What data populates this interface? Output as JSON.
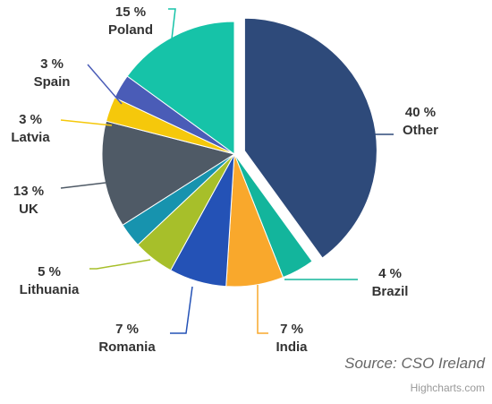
{
  "chart_data": {
    "type": "pie",
    "source": "Source: CSO Ireland",
    "credits": "Highcharts.com",
    "slices": [
      {
        "name": "Other",
        "label": "40 %",
        "value": 40,
        "color": "#2E4A7A",
        "sliced": true
      },
      {
        "name": "Brazil",
        "label": "4 %",
        "value": 4,
        "color": "#13B59C"
      },
      {
        "name": "India",
        "label": "7 %",
        "value": 7,
        "color": "#F9A82C"
      },
      {
        "name": "Romania",
        "label": "7 %",
        "value": 7,
        "color": "#2452B6"
      },
      {
        "name": "Lithuania",
        "label": "5 %",
        "value": 5,
        "color": "#A7BF2A"
      },
      {
        "name": "",
        "label": "",
        "value": 3,
        "color": "#1793AE"
      },
      {
        "name": "UK",
        "label": "13 %",
        "value": 13,
        "color": "#4F5A66"
      },
      {
        "name": "Latvia",
        "label": "3 %",
        "value": 3,
        "color": "#F5C80B"
      },
      {
        "name": "Spain",
        "label": "3 %",
        "value": 3,
        "color": "#4A5CB7"
      },
      {
        "name": "Poland",
        "label": "15 %",
        "value": 15,
        "color": "#16C3A8"
      }
    ]
  }
}
